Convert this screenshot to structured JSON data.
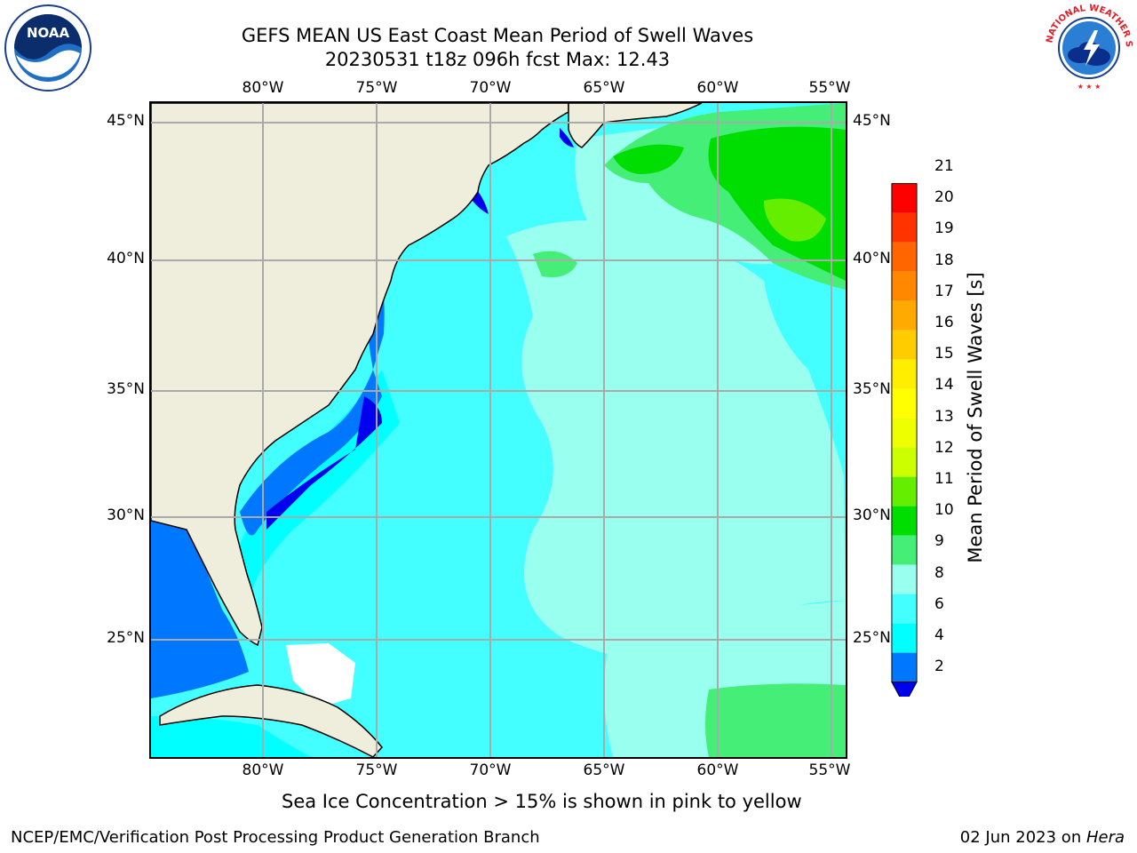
{
  "header": {
    "title_line1": "GEFS MEAN US East Coast Mean Period of Swell Waves",
    "title_line2": "20230531 t18z 096h fcst   Max: 12.43"
  },
  "logos": {
    "left": {
      "text": "NOAA",
      "icon": "noaa-logo"
    },
    "right": {
      "icon": "nws-logo",
      "ring_text": "NATIONAL WEATHER SERVICE"
    }
  },
  "map": {
    "lon_labels": [
      "80°W",
      "75°W",
      "70°W",
      "65°W",
      "60°W",
      "55°W"
    ],
    "lat_labels": [
      "45°N",
      "40°N",
      "35°N",
      "30°N",
      "25°N"
    ],
    "land_color": "#efeedc",
    "grid_color": "#aaaaaa"
  },
  "colorbar": {
    "label": "Mean Period of Swell Waves [s]",
    "ticks": [
      "21",
      "20",
      "19",
      "18",
      "17",
      "16",
      "15",
      "14",
      "13",
      "12",
      "11",
      "10",
      "9",
      "8",
      "6",
      "4",
      "2"
    ],
    "colors": [
      "#ff0000",
      "#ff3300",
      "#ff6600",
      "#ff8800",
      "#ffaa00",
      "#ffcc00",
      "#ffee00",
      "#ffff00",
      "#eeff00",
      "#ccff00",
      "#66ee00",
      "#00dd00",
      "#44ee77",
      "#99ffee",
      "#44ffff",
      "#00ffff",
      "#0077ff"
    ],
    "under_color": "#0000ee"
  },
  "footer": {
    "note": "Sea Ice Concentration > 15% is shown in pink to yellow",
    "credit": "NCEP/EMC/Verification Post Processing Product Generation Branch",
    "date": "02 Jun 2023 on ",
    "machine": "Hera"
  }
}
